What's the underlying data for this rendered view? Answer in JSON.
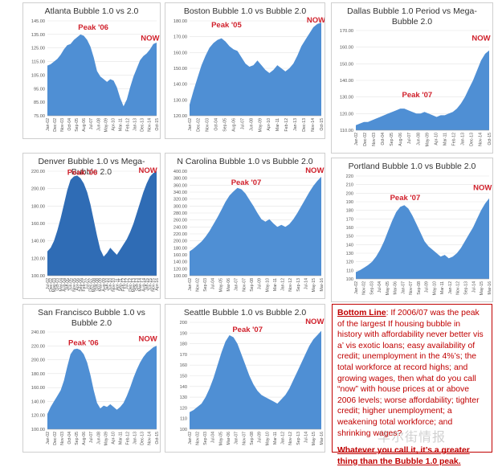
{
  "colors": {
    "fill": "#4f8fd4",
    "fill_dark": "#2f6cb5",
    "text": "#333333",
    "label": "#d0202b",
    "grid": "#e3e3e3"
  },
  "chart_data": [
    {
      "type": "area",
      "title": "Atlanta Bubble 1.0 vs 2.0",
      "yticks": [
        "75.00",
        "85.00",
        "95.00",
        "105.00",
        "115.00",
        "125.00",
        "135.00",
        "145.00"
      ],
      "ylim": [
        75,
        145
      ],
      "xticks": [
        "Jan-02",
        "Dec-02",
        "Nov-03",
        "Oct-04",
        "Sep-05",
        "Aug-06",
        "Jul-07",
        "Jun-08",
        "May-09",
        "Apr-10",
        "Mar-11",
        "Feb-12",
        "Jan-13",
        "Dec-13",
        "Nov-14",
        "Oct-15"
      ],
      "values": [
        112,
        113,
        115,
        117,
        120,
        124,
        127,
        128,
        131,
        133,
        135,
        134,
        131,
        126,
        118,
        108,
        104,
        102,
        100,
        102,
        101,
        96,
        88,
        82,
        87,
        96,
        104,
        110,
        116,
        119,
        121,
        124,
        128,
        129
      ],
      "annotations": [
        {
          "text": "Peak '06",
          "x": 0.42,
          "y": 136
        },
        {
          "text": "NOW",
          "x": 0.94,
          "y": 128
        }
      ]
    },
    {
      "type": "area",
      "title": "Boston Bubble 1.0 vs Bubble 2.0",
      "yticks": [
        "120.00",
        "130.00",
        "140.00",
        "150.00",
        "160.00",
        "170.00",
        "180.00"
      ],
      "ylim": [
        120,
        180
      ],
      "xticks": [
        "Jan-02",
        "Dec-02",
        "Nov-03",
        "Oct-04",
        "Sep-05",
        "Aug-06",
        "Jul-07",
        "Jun-08",
        "May-09",
        "Apr-10",
        "Mar-11",
        "Feb-12",
        "Jan-13",
        "Dec-13",
        "Nov-14",
        "Oct-15"
      ],
      "values": [
        127,
        136,
        144,
        152,
        158,
        163,
        166,
        168,
        169,
        167,
        164,
        162,
        161,
        157,
        153,
        151,
        152,
        155,
        152,
        149,
        147,
        149,
        152,
        150,
        148,
        150,
        153,
        158,
        164,
        168,
        172,
        176,
        178,
        179
      ],
      "annotations": [
        {
          "text": "Peak '05",
          "x": 0.28,
          "y": 174
        },
        {
          "text": "NOW",
          "x": 0.96,
          "y": 180
        }
      ]
    },
    {
      "type": "area",
      "title": "Dallas Bubble 1.0 Period vs Mega-Bubble 2.0",
      "yticks": [
        "110.00",
        "120.00",
        "130.00",
        "140.00",
        "150.00",
        "160.00",
        "170.00"
      ],
      "ylim": [
        110,
        170
      ],
      "xticks": [
        "Jan-02",
        "Dec-02",
        "Nov-03",
        "Oct-04",
        "Sep-05",
        "Aug-06",
        "Jul-07",
        "Jun-08",
        "May-09",
        "Apr-10",
        "Mar-11",
        "Feb-12",
        "Jan-13",
        "Dec-13",
        "Nov-14",
        "Oct-15"
      ],
      "values": [
        113,
        114,
        115,
        115,
        116,
        117,
        118,
        119,
        120,
        121,
        122,
        123,
        123,
        122,
        121,
        120,
        120,
        121,
        120,
        119,
        118,
        119,
        119,
        120,
        121,
        123,
        126,
        130,
        135,
        140,
        146,
        152,
        156,
        158
      ],
      "annotations": [
        {
          "text": "Peak '07",
          "x": 0.46,
          "y": 128
        },
        {
          "text": "NOW",
          "x": 0.94,
          "y": 162
        }
      ]
    },
    {
      "type": "area",
      "title": "Denver Bubble 1.0 vs Mega-Bubble 2.0",
      "yticks": [
        "100.00",
        "120.00",
        "140.00",
        "160.00",
        "180.00",
        "200.00",
        "220.00"
      ],
      "ylim": [
        100,
        220
      ],
      "xticks": [
        "Jul-02",
        "Dec-02",
        "May-03",
        "Oct-03",
        "Mar-04",
        "Aug-04",
        "Jan-05",
        "Jun-05",
        "Nov-05",
        "Apr-06",
        "Sep-06",
        "Feb-07",
        "Jul-07",
        "Dec-07",
        "May-08",
        "Oct-08",
        "Mar-09",
        "Aug-09",
        "Jan-10",
        "Jun-10",
        "Nov-10",
        "Apr-11",
        "Sep-11",
        "Feb-12",
        "Jul-12",
        "Dec-12",
        "May-13",
        "Oct-13",
        "Mar-14",
        "Aug-14",
        "Jan-15",
        "Jun-15",
        "Nov-15",
        "Apr-16"
      ],
      "values": [
        128,
        132,
        140,
        152,
        166,
        182,
        198,
        210,
        214,
        215,
        212,
        206,
        196,
        182,
        164,
        146,
        130,
        122,
        126,
        132,
        128,
        124,
        130,
        136,
        142,
        150,
        160,
        172,
        184,
        196,
        206,
        214,
        218,
        220
      ],
      "annotations": [
        {
          "text": "Peak '06",
          "x": 0.32,
          "y": 212
        },
        {
          "text": "NOW",
          "x": 0.92,
          "y": 222
        }
      ]
    },
    {
      "type": "area",
      "title": "N Carolina Bubble 1.0 vs Bubble 2.0",
      "yticks": [
        "100.00",
        "120.00",
        "140.00",
        "160.00",
        "180.00",
        "200.00",
        "220.00",
        "240.00",
        "260.00",
        "280.00",
        "300.00",
        "320.00",
        "340.00",
        "360.00",
        "380.00",
        "400.00"
      ],
      "ylim": [
        100,
        400
      ],
      "xticks": [
        "Jan-02",
        "Nov-02",
        "Sep-03",
        "Jul-04",
        "May-05",
        "Mar-06",
        "Jan-07",
        "Nov-07",
        "Sep-08",
        "Jul-09",
        "May-10",
        "Mar-11",
        "Jan-12",
        "Nov-12",
        "Sep-13",
        "Jul-14",
        "May-15",
        "Mar-16"
      ],
      "values": [
        170,
        178,
        188,
        198,
        212,
        228,
        248,
        268,
        290,
        312,
        330,
        342,
        352,
        348,
        336,
        318,
        300,
        280,
        262,
        255,
        262,
        250,
        240,
        246,
        240,
        248,
        262,
        280,
        300,
        320,
        340,
        358,
        372,
        384
      ],
      "annotations": [
        {
          "text": "Peak '07",
          "x": 0.43,
          "y": 352
        },
        {
          "text": "NOW",
          "x": 0.95,
          "y": 390
        }
      ]
    },
    {
      "type": "area",
      "title": "Portland Bubble 1.0 vs Bubble 2.0",
      "yticks": [
        "100",
        "110",
        "120",
        "130",
        "140",
        "150",
        "160",
        "170",
        "180",
        "190",
        "200",
        "210",
        "220"
      ],
      "ylim": [
        100,
        220
      ],
      "xticks": [
        "Jan-02",
        "Nov-02",
        "Sep-03",
        "Jul-04",
        "May-05",
        "Mar-06",
        "Jan-07",
        "Nov-07",
        "Sep-08",
        "Jul-09",
        "May-10",
        "Mar-11",
        "Jan-12",
        "Nov-12",
        "Sep-13",
        "Jul-14",
        "May-15",
        "Mar-16"
      ],
      "values": [
        108,
        110,
        113,
        116,
        120,
        126,
        134,
        144,
        156,
        168,
        178,
        184,
        186,
        182,
        174,
        164,
        154,
        144,
        138,
        134,
        130,
        126,
        128,
        124,
        126,
        130,
        136,
        144,
        152,
        160,
        170,
        180,
        188,
        194
      ],
      "annotations": [
        {
          "text": "Peak '07",
          "x": 0.37,
          "y": 188
        },
        {
          "text": "NOW",
          "x": 0.95,
          "y": 200
        }
      ]
    },
    {
      "type": "area",
      "title": "San Francisco Bubble 1.0 vs Bubble 2.0",
      "yticks": [
        "100.00",
        "120.00",
        "140.00",
        "160.00",
        "180.00",
        "200.00",
        "220.00",
        "240.00"
      ],
      "ylim": [
        100,
        240
      ],
      "xticks": [
        "Jan-02",
        "Dec-02",
        "Nov-03",
        "Oct-04",
        "Sep-05",
        "Aug-06",
        "Jul-07",
        "Jun-08",
        "May-09",
        "Apr-10",
        "Mar-11",
        "Feb-12",
        "Jan-13",
        "Dec-13",
        "Nov-14",
        "Oct-15"
      ],
      "values": [
        122,
        132,
        140,
        148,
        156,
        170,
        190,
        208,
        215,
        216,
        214,
        208,
        196,
        178,
        156,
        138,
        130,
        134,
        132,
        136,
        132,
        128,
        132,
        138,
        148,
        160,
        174,
        186,
        196,
        204,
        210,
        214,
        218,
        220
      ],
      "annotations": [
        {
          "text": "Peak '06",
          "x": 0.33,
          "y": 216
        },
        {
          "text": "NOW",
          "x": 0.92,
          "y": 222
        }
      ]
    },
    {
      "type": "area",
      "title": "Seattle Bubble 1.0 vs Bubble 2.0",
      "yticks": [
        "100",
        "110",
        "120",
        "130",
        "140",
        "150",
        "160",
        "170",
        "180",
        "190",
        "200"
      ],
      "ylim": [
        100,
        200
      ],
      "xticks": [
        "Jan-02",
        "Nov-02",
        "Sep-03",
        "Jul-04",
        "May-05",
        "Mar-06",
        "Jan-07",
        "Nov-07",
        "Sep-08",
        "Jul-09",
        "May-10",
        "Mar-11",
        "Jan-12",
        "Nov-12",
        "Sep-13",
        "Jul-14",
        "May-15",
        "Mar-16"
      ],
      "values": [
        116,
        118,
        121,
        124,
        130,
        138,
        148,
        160,
        172,
        182,
        188,
        186,
        180,
        170,
        160,
        150,
        142,
        136,
        132,
        130,
        128,
        126,
        124,
        128,
        132,
        138,
        146,
        154,
        162,
        170,
        178,
        184,
        188,
        192
      ],
      "annotations": [
        {
          "text": "Peak '07",
          "x": 0.44,
          "y": 188
        },
        {
          "text": "NOW",
          "x": 0.95,
          "y": 198
        }
      ]
    }
  ],
  "note": {
    "heading": "Bottom Line",
    "body": ":  If 2006/07 was the peak of the largest If housing bubble in history with affordability never better vis a’ vis exotic loans;  easy availability of credit; unemployment in the 4%’s;  the total workforce at record highs;  and growing wages, then what do you call “now” with house prices at or above 2006 levels; worse affordability;  tighter credit;  higher unemployment;  a weakening total workforce;  and shrinking wages?",
    "final": "Whatever you call it, it’s a greater thing than the Bubble 1.0 peak."
  },
  "watermark": "华尔街情报"
}
